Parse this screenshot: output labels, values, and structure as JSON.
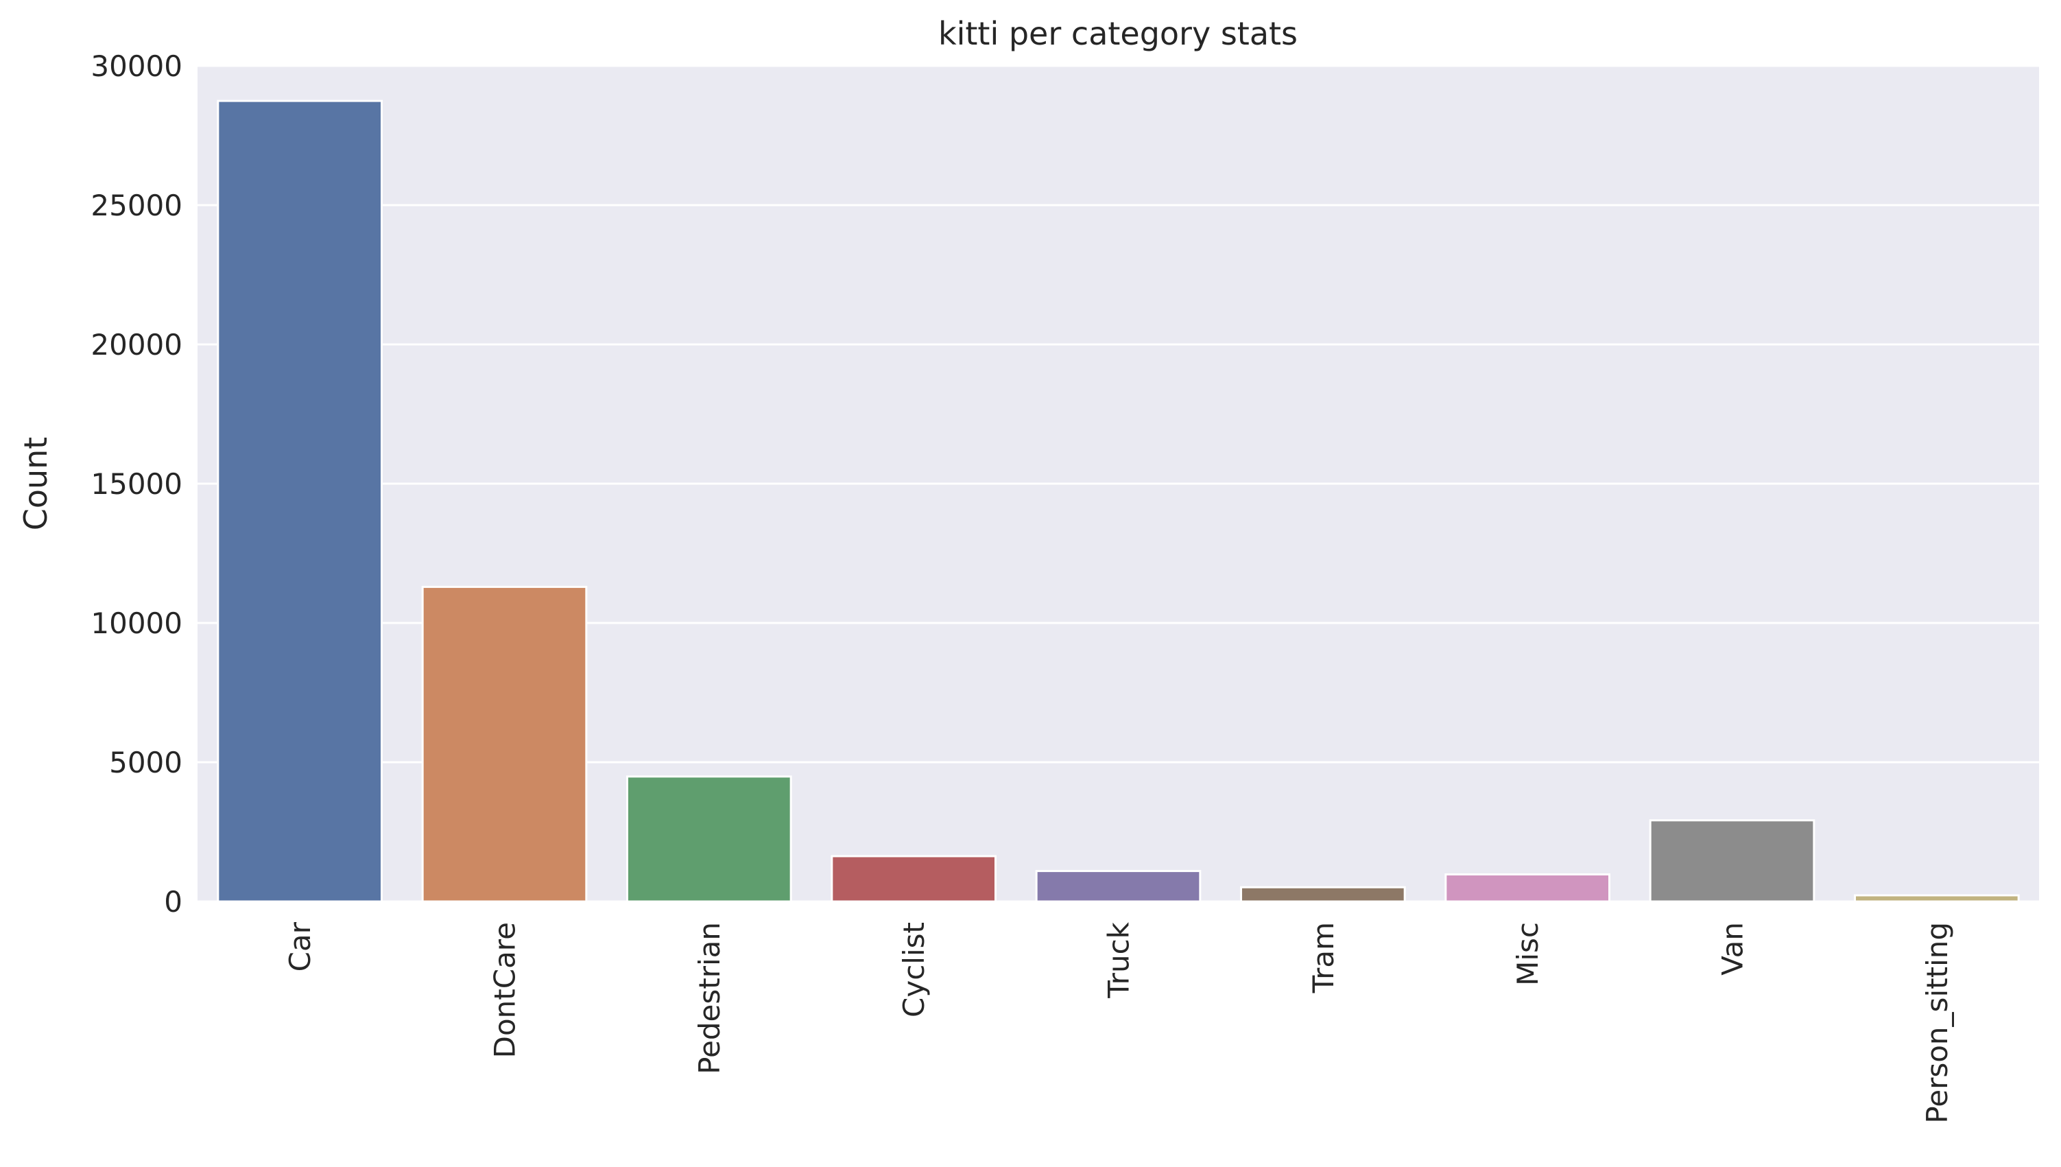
{
  "chart_data": {
    "type": "bar",
    "title": "kitti per category stats",
    "xlabel": "",
    "ylabel": "Count",
    "ylim": [
      0,
      30000
    ],
    "yticks": [
      0,
      5000,
      10000,
      15000,
      20000,
      25000,
      30000
    ],
    "categories": [
      "Car",
      "DontCare",
      "Pedestrian",
      "Cyclist",
      "Truck",
      "Tram",
      "Misc",
      "Van",
      "Person_sitting"
    ],
    "values": [
      28742,
      11295,
      4487,
      1627,
      1094,
      511,
      973,
      2914,
      222
    ],
    "colors": [
      "#5875a4",
      "#cc8963",
      "#5f9e6e",
      "#b55d60",
      "#857aab",
      "#8d7866",
      "#d095bf",
      "#8c8c8c",
      "#c1b37f"
    ],
    "background": "#eaeaf2",
    "grid": true,
    "legend": "none"
  }
}
